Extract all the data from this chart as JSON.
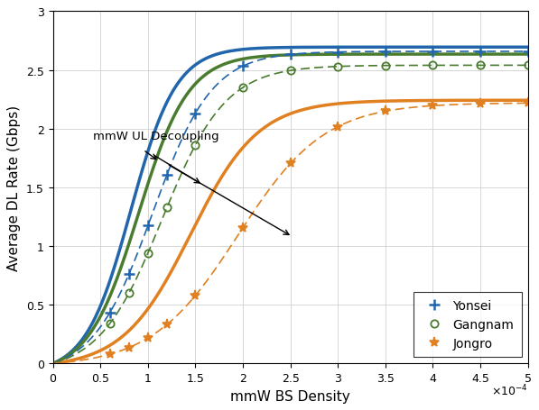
{
  "title": "",
  "xlabel": "mmW BS Density",
  "ylabel": "Average DL Rate (Gbps)",
  "xlim": [
    0,
    0.0005
  ],
  "ylim": [
    0,
    3
  ],
  "xticks": [
    0,
    5e-05,
    0.0001,
    0.00015,
    0.0002,
    0.00025,
    0.0003,
    0.00035,
    0.0004,
    0.00045,
    0.0005
  ],
  "yticks": [
    0,
    0.5,
    1.0,
    1.5,
    2.0,
    2.5,
    3.0
  ],
  "colors": {
    "yonsei": "#2166ac",
    "gangnam": "#4a7c2f",
    "jongro": "#e08020"
  },
  "figsize": [
    5.97,
    4.56
  ],
  "dpi": 100
}
